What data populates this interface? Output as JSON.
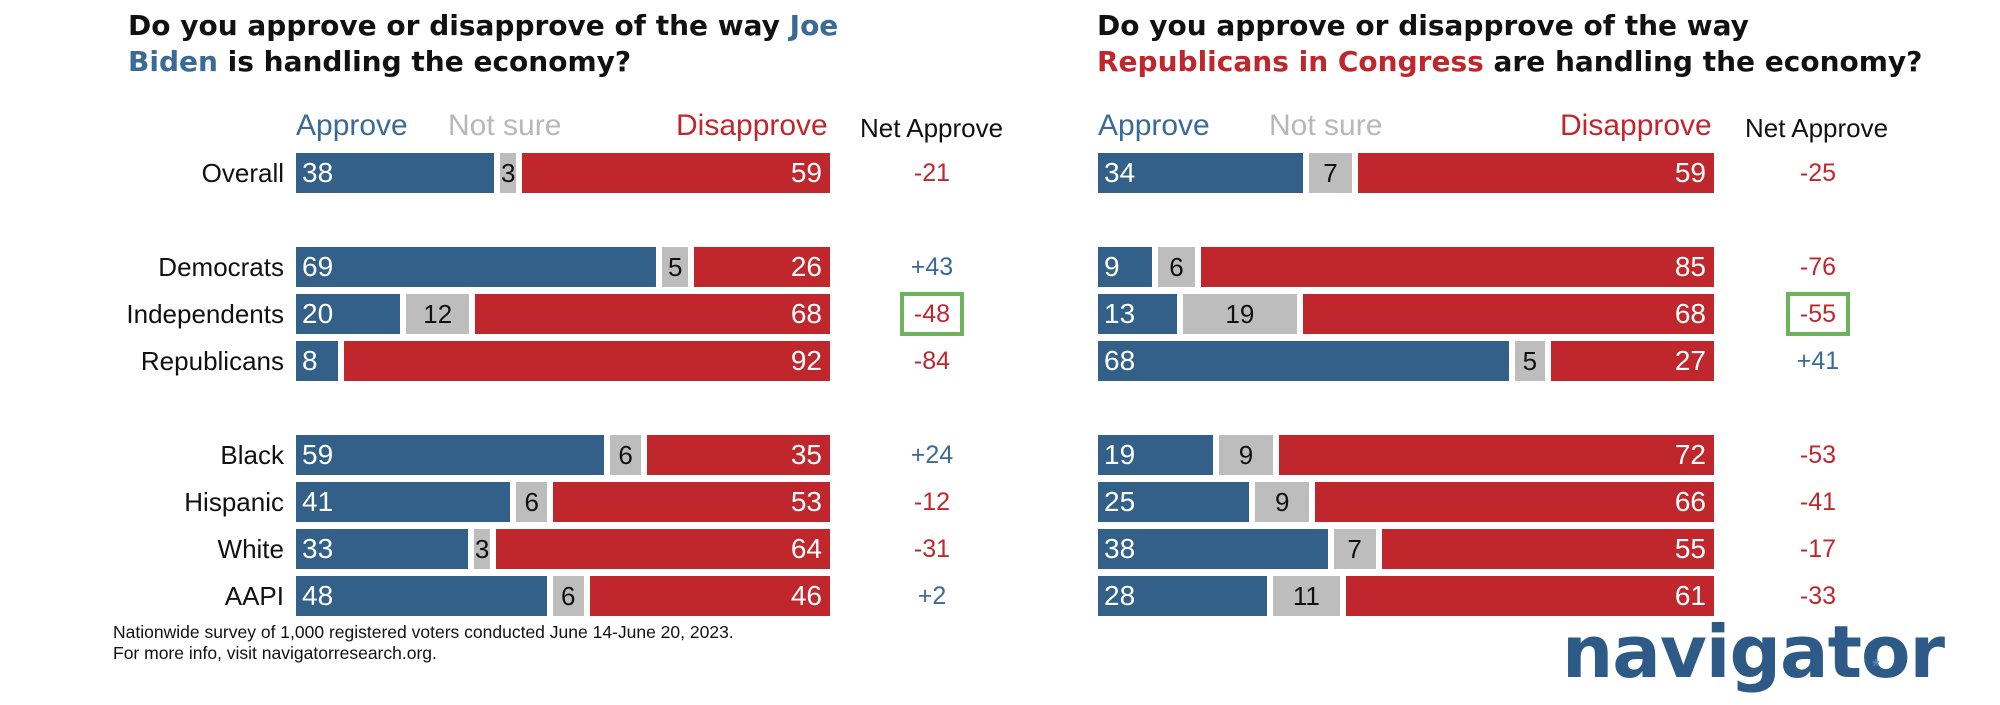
{
  "chart_data": [
    {
      "type": "bar",
      "stacked": true,
      "orientation": "horizontal",
      "title_parts": [
        "Do you approve or disapprove of the way ",
        "Joe Biden",
        " is handling the economy?"
      ],
      "legend": [
        "Approve",
        "Not sure",
        "Disapprove"
      ],
      "net_header": "Net Approve",
      "categories": [
        "Overall",
        "Democrats",
        "Independents",
        "Republicans",
        "Black",
        "Hispanic",
        "White",
        "AAPI"
      ],
      "series": [
        {
          "name": "Approve",
          "values": [
            38,
            69,
            20,
            8,
            59,
            41,
            33,
            48
          ]
        },
        {
          "name": "Not sure",
          "values": [
            3,
            5,
            12,
            null,
            6,
            6,
            3,
            6
          ]
        },
        {
          "name": "Disapprove",
          "values": [
            59,
            26,
            68,
            92,
            35,
            53,
            64,
            46
          ]
        }
      ],
      "net": [
        "-21",
        "+43",
        "-48",
        "-84",
        "+24",
        "-12",
        "-31",
        "+2"
      ],
      "highlighted_category": "Independents"
    },
    {
      "type": "bar",
      "stacked": true,
      "orientation": "horizontal",
      "title_parts": [
        "Do you approve or disapprove of the way ",
        "Republicans in Congress",
        " are handling the economy?"
      ],
      "legend": [
        "Approve",
        "Not sure",
        "Disapprove"
      ],
      "net_header": "Net Approve",
      "categories": [
        "Overall",
        "Democrats",
        "Independents",
        "Republicans",
        "Black",
        "Hispanic",
        "White",
        "AAPI"
      ],
      "series": [
        {
          "name": "Approve",
          "values": [
            34,
            9,
            13,
            68,
            19,
            25,
            38,
            28
          ]
        },
        {
          "name": "Not sure",
          "values": [
            7,
            6,
            19,
            5,
            9,
            9,
            7,
            11
          ]
        },
        {
          "name": "Disapprove",
          "values": [
            59,
            85,
            68,
            27,
            72,
            66,
            55,
            61
          ]
        }
      ],
      "net": [
        "-25",
        "-76",
        "-55",
        "+41",
        "-53",
        "-41",
        "-17",
        "-33"
      ],
      "highlighted_category": "Independents"
    }
  ],
  "colors": {
    "approve": "#336089",
    "not_sure": "#bdbdbd",
    "disapprove": "#c0272d",
    "net_positive": "#3a6a96",
    "net_negative": "#c0272d",
    "highlight_box": "#6db25d",
    "logo": "#2d5a86"
  },
  "footnote": {
    "line1": "Nationwide survey of 1,000 registered voters conducted June 14-June 20, 2023.",
    "line2": "For more info, visit navigatorresearch.org."
  },
  "logo": {
    "text": "navigator",
    "star": "*"
  }
}
